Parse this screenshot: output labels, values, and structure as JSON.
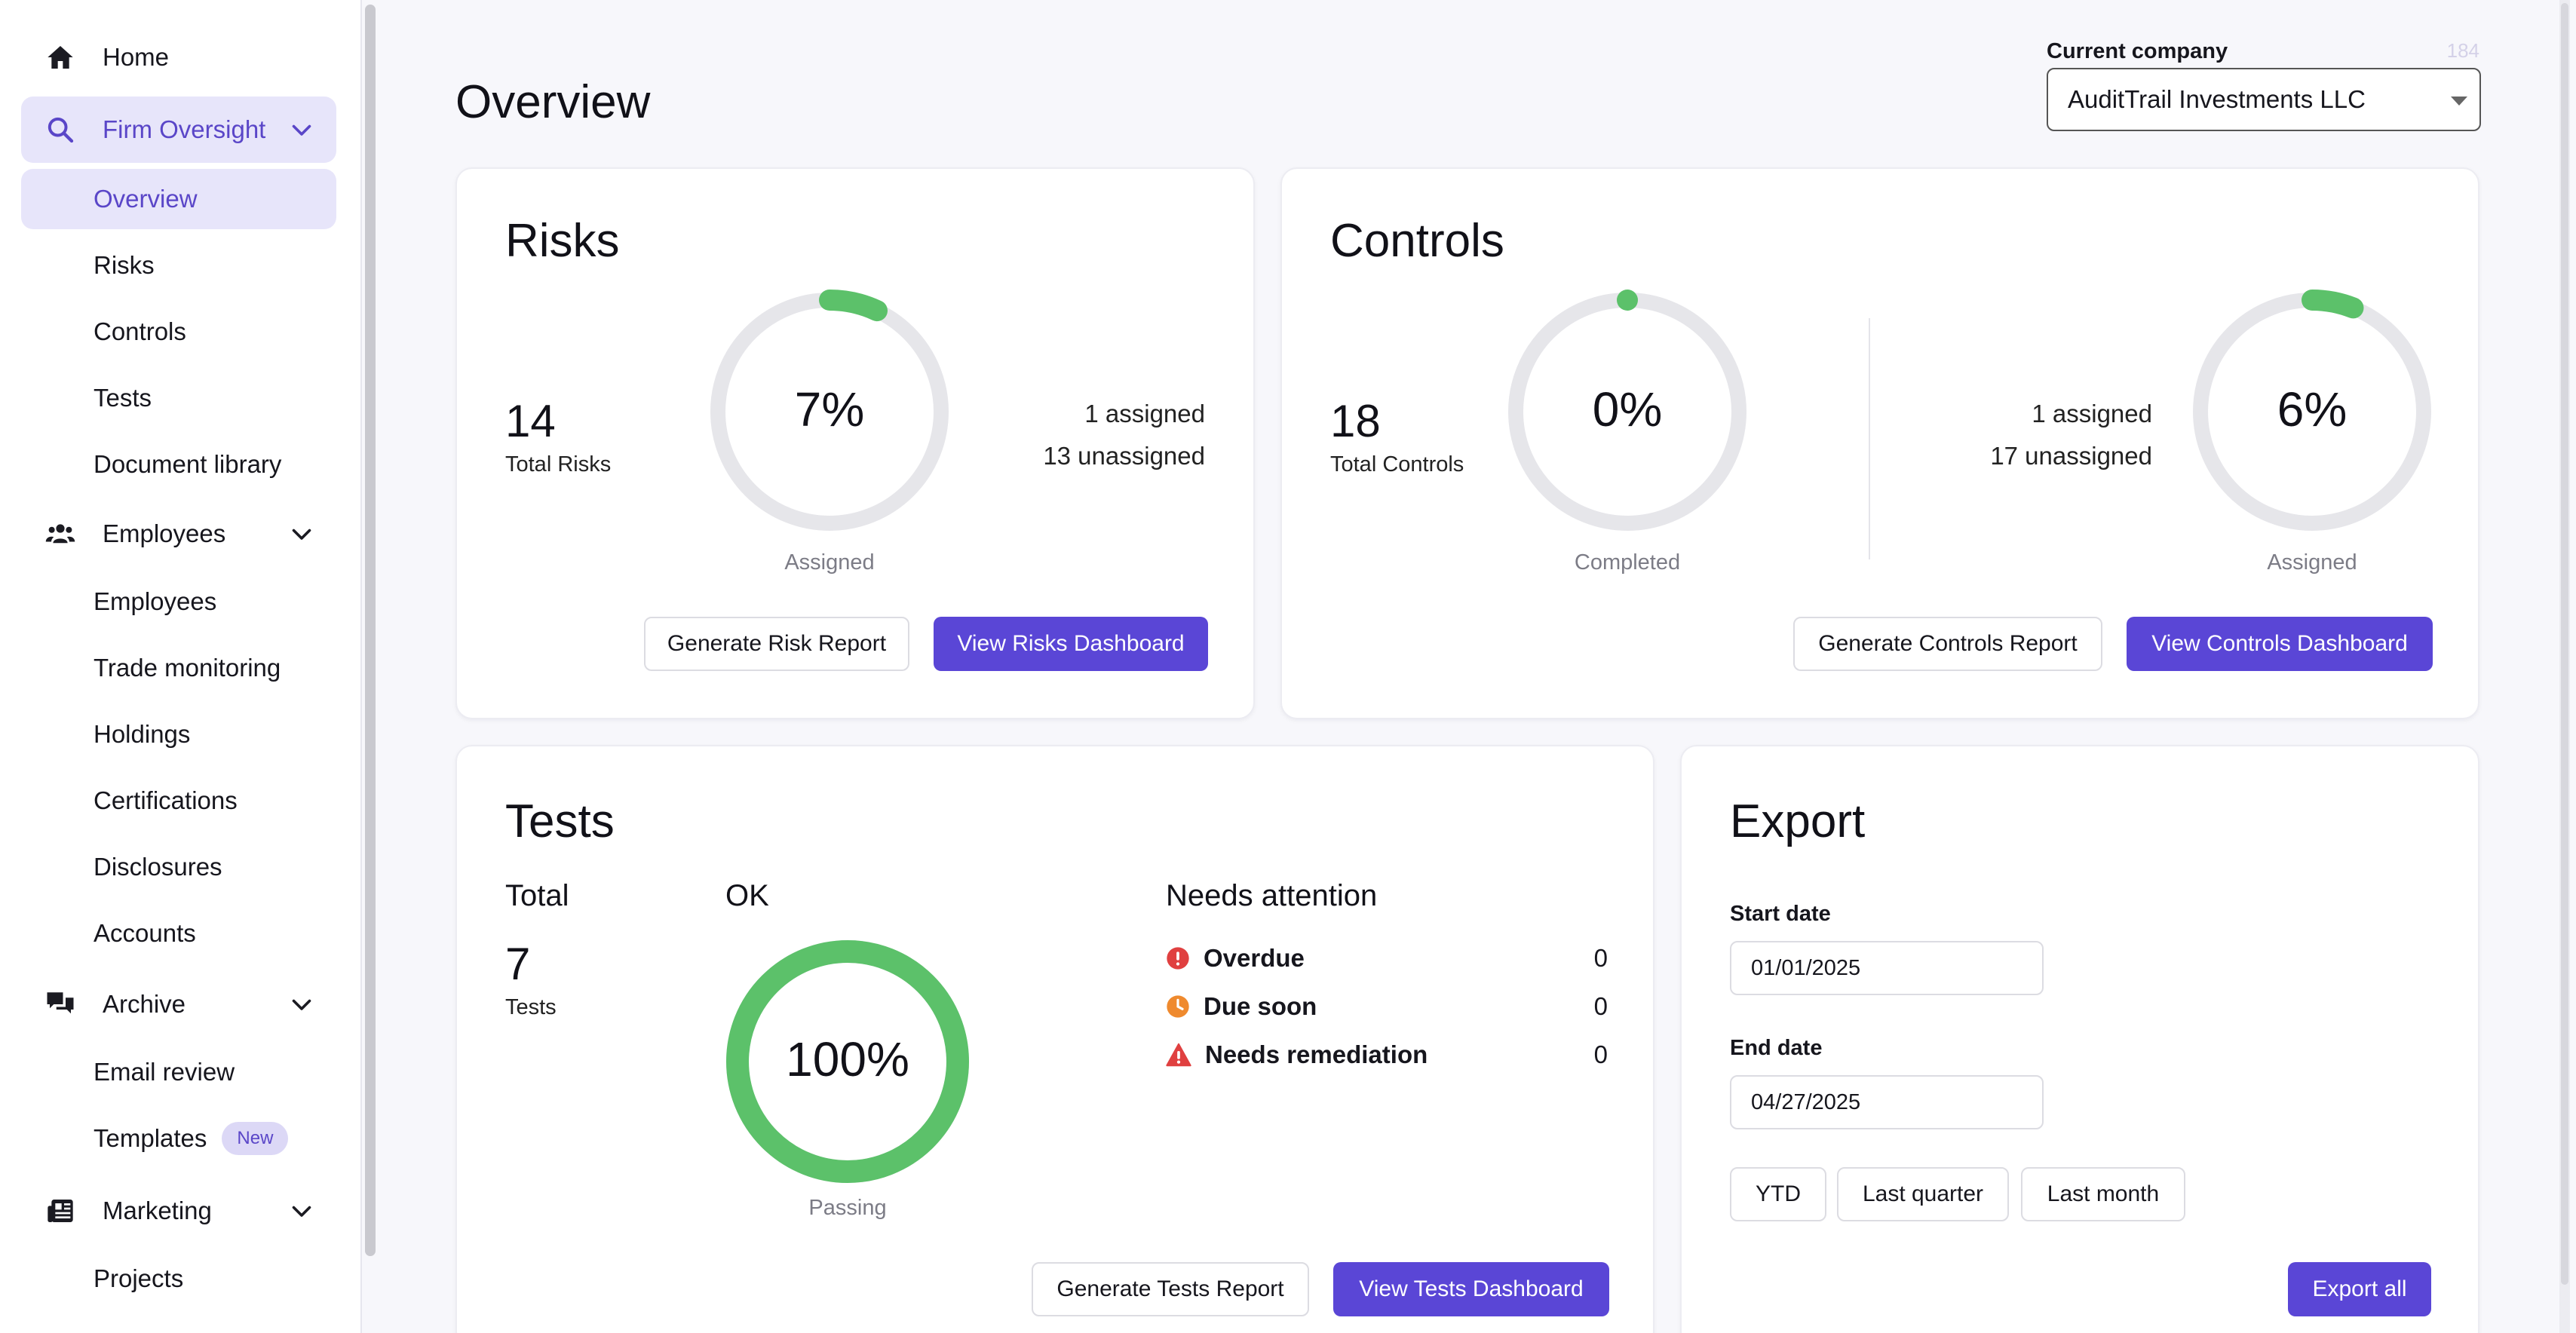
{
  "sidebar": {
    "home": "Home",
    "firm_oversight": "Firm Oversight",
    "firm_items": [
      "Overview",
      "Risks",
      "Controls",
      "Tests",
      "Document library"
    ],
    "employees_group": "Employees",
    "employees_items": [
      "Employees",
      "Trade monitoring",
      "Holdings",
      "Certifications",
      "Disclosures",
      "Accounts"
    ],
    "archive_group": "Archive",
    "archive_items": [
      "Email review",
      "Templates"
    ],
    "templates_badge": "New",
    "marketing_group": "Marketing",
    "marketing_items": [
      "Projects"
    ]
  },
  "header": {
    "title": "Overview",
    "company_label": "Current company",
    "company_number": "184",
    "company_value": "AuditTrail Investments LLC"
  },
  "risks": {
    "title": "Risks",
    "total": "14",
    "total_label": "Total Risks",
    "percent_text": "7%",
    "percent_value": 7,
    "ring_label": "Assigned",
    "assigned": "1 assigned",
    "unassigned": "13 unassigned",
    "report_button": "Generate Risk Report",
    "dashboard_button": "View Risks Dashboard"
  },
  "controls": {
    "title": "Controls",
    "total": "18",
    "total_label": "Total Controls",
    "completed_text": "0%",
    "completed_value": 0,
    "completed_label": "Completed",
    "assigned": "1 assigned",
    "unassigned": "17 unassigned",
    "assigned_text": "6%",
    "assigned_value": 6,
    "assigned_label": "Assigned",
    "report_button": "Generate Controls Report",
    "dashboard_button": "View Controls Dashboard"
  },
  "tests": {
    "title": "Tests",
    "total_head": "Total",
    "total": "7",
    "total_label": "Tests",
    "ok_head": "OK",
    "passing_text": "100%",
    "passing_value": 100,
    "passing_label": "Passing",
    "attention_head": "Needs attention",
    "overdue_label": "Overdue",
    "overdue_value": "0",
    "due_soon_label": "Due soon",
    "due_soon_value": "0",
    "remediation_label": "Needs remediation",
    "remediation_value": "0",
    "report_button": "Generate Tests Report",
    "dashboard_button": "View Tests Dashboard"
  },
  "export": {
    "title": "Export",
    "start_label": "Start date",
    "start_value": "01/01/2025",
    "end_label": "End date",
    "end_value": "04/27/2025",
    "ytd": "YTD",
    "last_quarter": "Last quarter",
    "last_month": "Last month",
    "export_all": "Export all"
  },
  "colors": {
    "accent": "#5a46d6",
    "ring_fill": "#5cc16a",
    "ring_track": "#e6e6ea",
    "overdue": "#e04040",
    "due_soon": "#ef8a2e",
    "remediation": "#e04040"
  }
}
